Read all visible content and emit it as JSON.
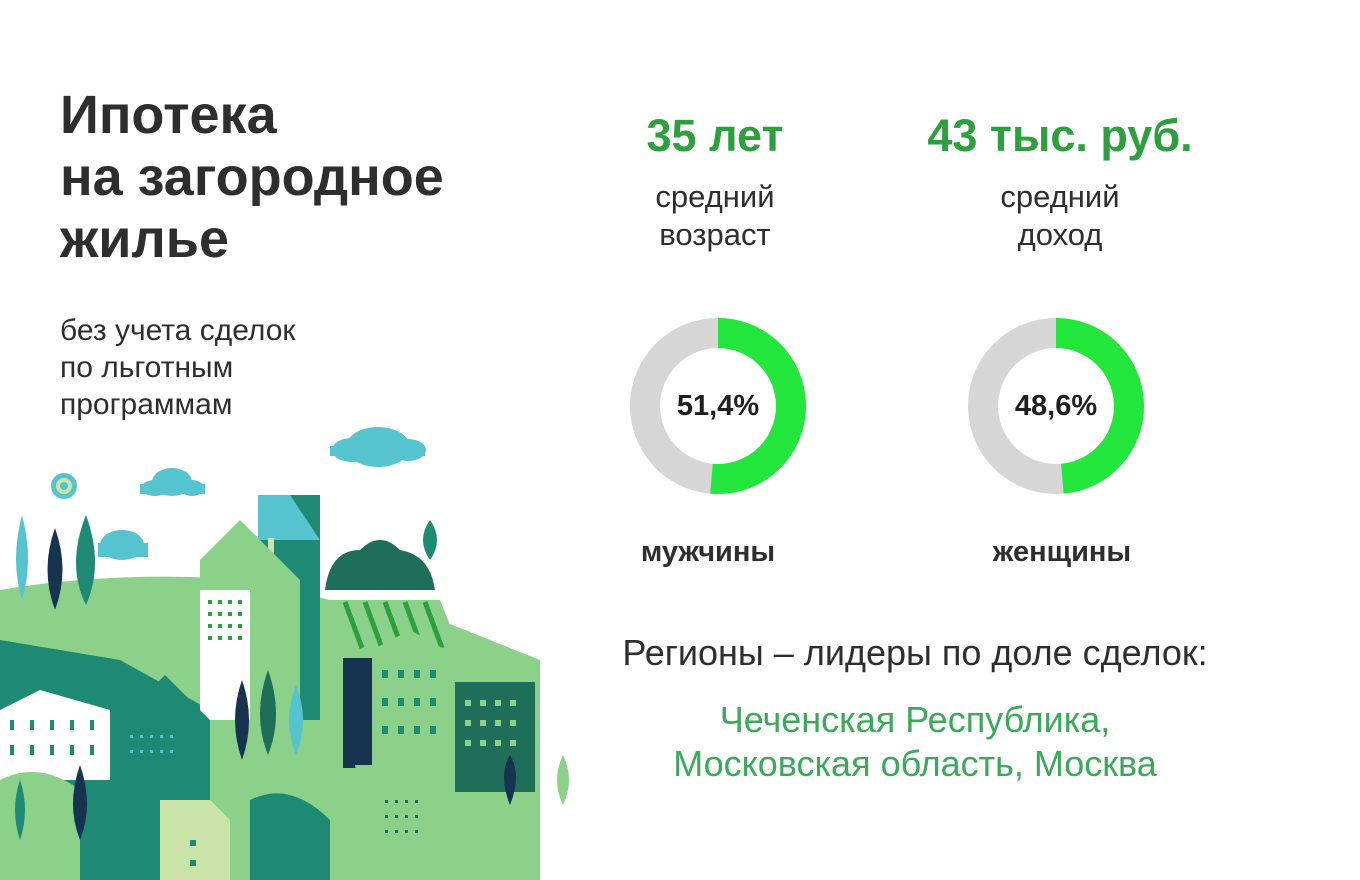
{
  "title_lines": [
    "Ипотека",
    "на загородное",
    "жилье"
  ],
  "subtitle_lines": [
    "без учета сделок",
    "по льготным",
    "программам"
  ],
  "stats": {
    "age": {
      "value": "35 лет",
      "label_lines": [
        "средний",
        "возраст"
      ]
    },
    "income": {
      "value": "43 тыс. руб.",
      "label_lines": [
        "средний",
        "доход"
      ]
    }
  },
  "gender": {
    "men": {
      "percent_text": "51,4%",
      "share": 0.514,
      "label": "мужчины"
    },
    "women": {
      "percent_text": "48,6%",
      "share": 0.486,
      "label": "женщины"
    }
  },
  "regions": {
    "heading": "Регионы – лидеры по доле сделок:",
    "list_lines": [
      "Чеченская Республика,",
      "Московская область, Москва"
    ]
  },
  "colors": {
    "accent_green": "#2e9f3e",
    "donut_fill": "#22e63c",
    "donut_track": "#d6d6d6",
    "regions_green": "#3aa95a"
  },
  "illustration": {
    "icon": "city-houses-illustration"
  }
}
